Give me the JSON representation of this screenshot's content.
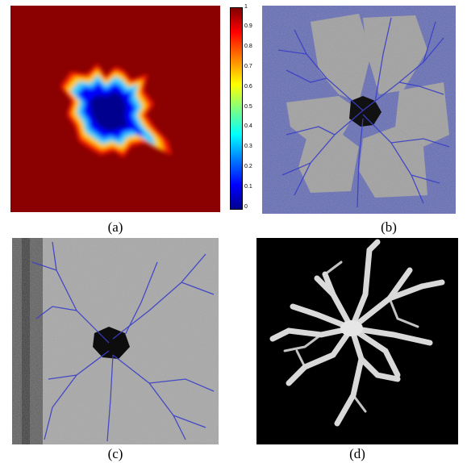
{
  "captions": {
    "a": "(a)",
    "b": "(b)",
    "c": "(c)",
    "d": "(d)"
  },
  "colorbar": {
    "ticks": [
      "1",
      "0.9",
      "0.8",
      "0.7",
      "0.6",
      "0.5",
      "0.4",
      "0.3",
      "0.2",
      "0.1",
      "0"
    ],
    "colors": [
      "#00008f",
      "#0000ff",
      "#0080ff",
      "#00ffff",
      "#80ff80",
      "#ffff00",
      "#ff8000",
      "#ff0000",
      "#800000"
    ]
  },
  "colors": {
    "background_red": "#8b0000",
    "vessel_blue": "#3a3fc8",
    "overlay_blue": "#5a64b4",
    "structure_white": "#d9d9d9"
  }
}
